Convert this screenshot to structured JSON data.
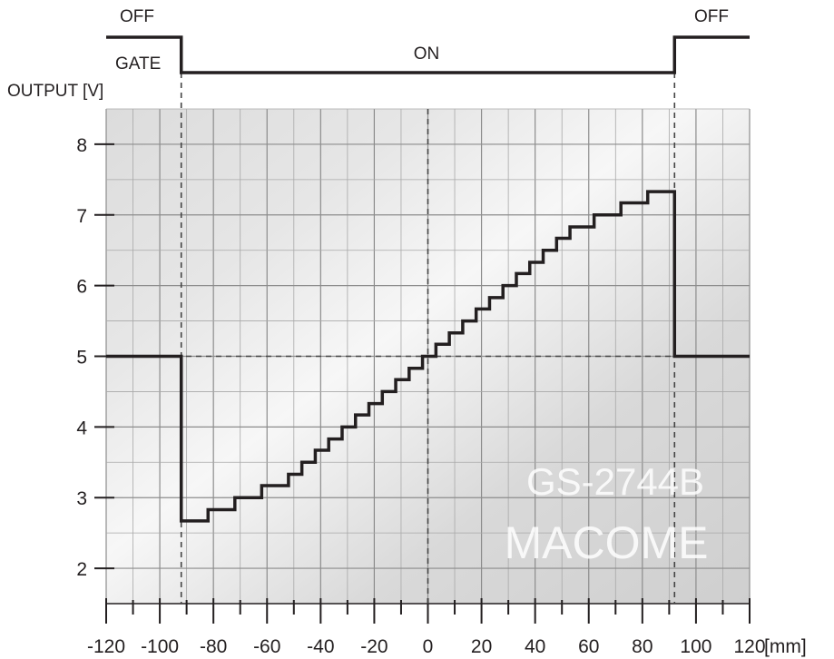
{
  "chart_data": {
    "type": "line",
    "title": "",
    "xlabel": "[mm]",
    "ylabel": "OUTPUT [V]",
    "xlim": [
      -120,
      120
    ],
    "ylim": [
      1.5,
      8.5
    ],
    "x_ticks": [
      -120,
      -100,
      -80,
      -60,
      -40,
      -20,
      0,
      20,
      40,
      60,
      80,
      100,
      120
    ],
    "y_ticks": [
      2,
      3,
      4,
      5,
      6,
      7,
      8
    ],
    "grid": true,
    "gate": {
      "label": "GATE",
      "off_left_label": "OFF",
      "on_label": "ON",
      "off_right_label": "OFF",
      "on_range": [
        -92,
        92
      ]
    },
    "series": [
      {
        "points": [
          [
            -120,
            5.0
          ],
          [
            -92,
            5.0
          ],
          [
            -92,
            2.67
          ],
          [
            -82,
            2.67
          ],
          [
            -82,
            2.83
          ],
          [
            -72,
            2.83
          ],
          [
            -72,
            3.0
          ],
          [
            -62,
            3.0
          ],
          [
            -62,
            3.17
          ],
          [
            -52,
            3.17
          ],
          [
            -52,
            3.33
          ],
          [
            -47,
            3.33
          ],
          [
            -47,
            3.5
          ],
          [
            -42,
            3.5
          ],
          [
            -42,
            3.67
          ],
          [
            -37,
            3.67
          ],
          [
            -37,
            3.83
          ],
          [
            -32,
            3.83
          ],
          [
            -32,
            4.0
          ],
          [
            -27,
            4.0
          ],
          [
            -27,
            4.17
          ],
          [
            -22,
            4.17
          ],
          [
            -22,
            4.33
          ],
          [
            -17,
            4.33
          ],
          [
            -17,
            4.5
          ],
          [
            -12,
            4.5
          ],
          [
            -12,
            4.67
          ],
          [
            -7,
            4.67
          ],
          [
            -7,
            4.83
          ],
          [
            -2,
            4.83
          ],
          [
            -2,
            5.0
          ],
          [
            3,
            5.0
          ],
          [
            3,
            5.17
          ],
          [
            8,
            5.17
          ],
          [
            8,
            5.33
          ],
          [
            13,
            5.33
          ],
          [
            13,
            5.5
          ],
          [
            18,
            5.5
          ],
          [
            18,
            5.67
          ],
          [
            23,
            5.67
          ],
          [
            23,
            5.83
          ],
          [
            28,
            5.83
          ],
          [
            28,
            6.0
          ],
          [
            33,
            6.0
          ],
          [
            33,
            6.17
          ],
          [
            38,
            6.17
          ],
          [
            38,
            6.33
          ],
          [
            43,
            6.33
          ],
          [
            43,
            6.5
          ],
          [
            48,
            6.5
          ],
          [
            48,
            6.67
          ],
          [
            53,
            6.67
          ],
          [
            53,
            6.83
          ],
          [
            62,
            6.83
          ],
          [
            62,
            7.0
          ],
          [
            72,
            7.0
          ],
          [
            72,
            7.17
          ],
          [
            82,
            7.17
          ],
          [
            82,
            7.33
          ],
          [
            92,
            7.33
          ],
          [
            92,
            5.0
          ],
          [
            120,
            5.0
          ]
        ]
      }
    ],
    "annotations": {
      "watermark_model": "GS-2744B",
      "watermark_brand": "MACOME"
    }
  }
}
